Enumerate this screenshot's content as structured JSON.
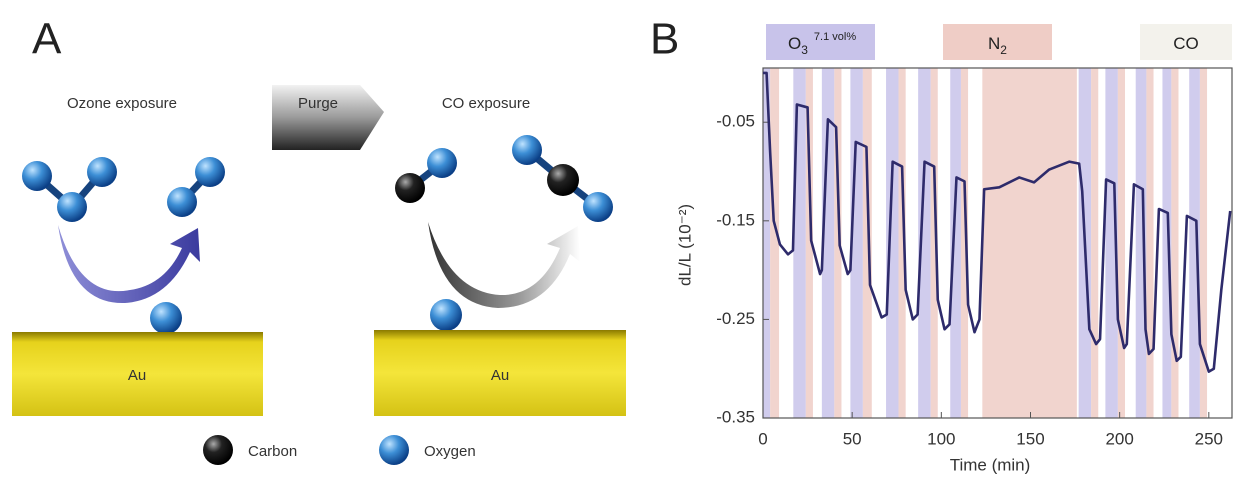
{
  "panel_a": {
    "label": "A",
    "ozone": "Ozone exposure",
    "purge": "Purge",
    "co": "CO exposure",
    "surface_left": "Au",
    "surface_right": "Au",
    "legend": [
      "Carbon",
      "Oxygen"
    ]
  },
  "chart_data": {
    "type": "line",
    "panel_label": "B",
    "x_label": "Time (min)",
    "y_label": "dL/L (10⁻²)",
    "xlim": [
      0,
      263
    ],
    "xticks": [
      0,
      50,
      100,
      150,
      200,
      250
    ],
    "ylim": [
      -0.35,
      0.005
    ],
    "yticks": [
      -0.05,
      -0.15,
      -0.25,
      -0.35
    ],
    "color": "#2e2b6b",
    "legend": [
      {
        "label": "O",
        "sub": "3",
        "sup": "7.1 vol%",
        "color": "#c8c3ea",
        "spans": [
          [
            0,
            4
          ],
          [
            17,
            24
          ],
          [
            33,
            40
          ],
          [
            49,
            56
          ],
          [
            69,
            76
          ],
          [
            87,
            94
          ],
          [
            105,
            111
          ],
          [
            177,
            184
          ],
          [
            192,
            199
          ],
          [
            209,
            215
          ],
          [
            224,
            229
          ],
          [
            239,
            245
          ]
        ]
      },
      {
        "label": "N",
        "sub": "2",
        "color": "#efcdc6",
        "spans": [
          [
            4,
            9
          ],
          [
            24,
            28
          ],
          [
            40,
            44
          ],
          [
            56,
            61
          ],
          [
            76,
            80
          ],
          [
            94,
            98
          ],
          [
            111,
            115
          ],
          [
            123,
            176
          ],
          [
            184,
            188
          ],
          [
            199,
            203
          ],
          [
            215,
            219
          ],
          [
            229,
            233
          ],
          [
            245,
            249
          ]
        ]
      },
      {
        "label": "CO",
        "color": "#f3f2ec",
        "spans": []
      }
    ],
    "x": [
      0,
      2,
      4,
      6,
      9.5,
      14,
      16.8,
      19,
      25,
      27,
      32,
      33,
      36.4,
      41,
      43,
      47.5,
      49,
      52,
      58,
      60,
      66.5,
      69.4,
      72.7,
      78,
      80,
      84,
      86.7,
      90.6,
      96,
      98,
      101.8,
      104.6,
      108.5,
      113,
      115,
      118.6,
      121.4,
      124,
      132.5,
      143.7,
      152,
      160.5,
      171.7,
      177.3,
      179,
      183,
      186.8,
      189,
      192.4,
      197,
      199,
      202.5,
      204,
      208,
      213,
      214.5,
      216.4,
      219,
      222,
      227,
      229,
      232,
      234.3,
      237.7,
      243,
      245,
      250,
      252.8,
      257,
      262
    ],
    "values": [
      0.0,
      0.0,
      -0.08,
      -0.15,
      -0.174,
      -0.184,
      -0.18,
      -0.032,
      -0.035,
      -0.17,
      -0.204,
      -0.2,
      -0.047,
      -0.055,
      -0.175,
      -0.204,
      -0.2,
      -0.07,
      -0.075,
      -0.215,
      -0.248,
      -0.245,
      -0.09,
      -0.095,
      -0.22,
      -0.25,
      -0.245,
      -0.09,
      -0.095,
      -0.23,
      -0.26,
      -0.255,
      -0.106,
      -0.11,
      -0.235,
      -0.263,
      -0.25,
      -0.118,
      -0.116,
      -0.106,
      -0.111,
      -0.098,
      -0.09,
      -0.092,
      -0.12,
      -0.26,
      -0.275,
      -0.27,
      -0.108,
      -0.112,
      -0.25,
      -0.279,
      -0.275,
      -0.113,
      -0.118,
      -0.26,
      -0.285,
      -0.28,
      -0.138,
      -0.142,
      -0.265,
      -0.292,
      -0.288,
      -0.145,
      -0.15,
      -0.275,
      -0.303,
      -0.3,
      -0.22,
      -0.14
    ]
  }
}
